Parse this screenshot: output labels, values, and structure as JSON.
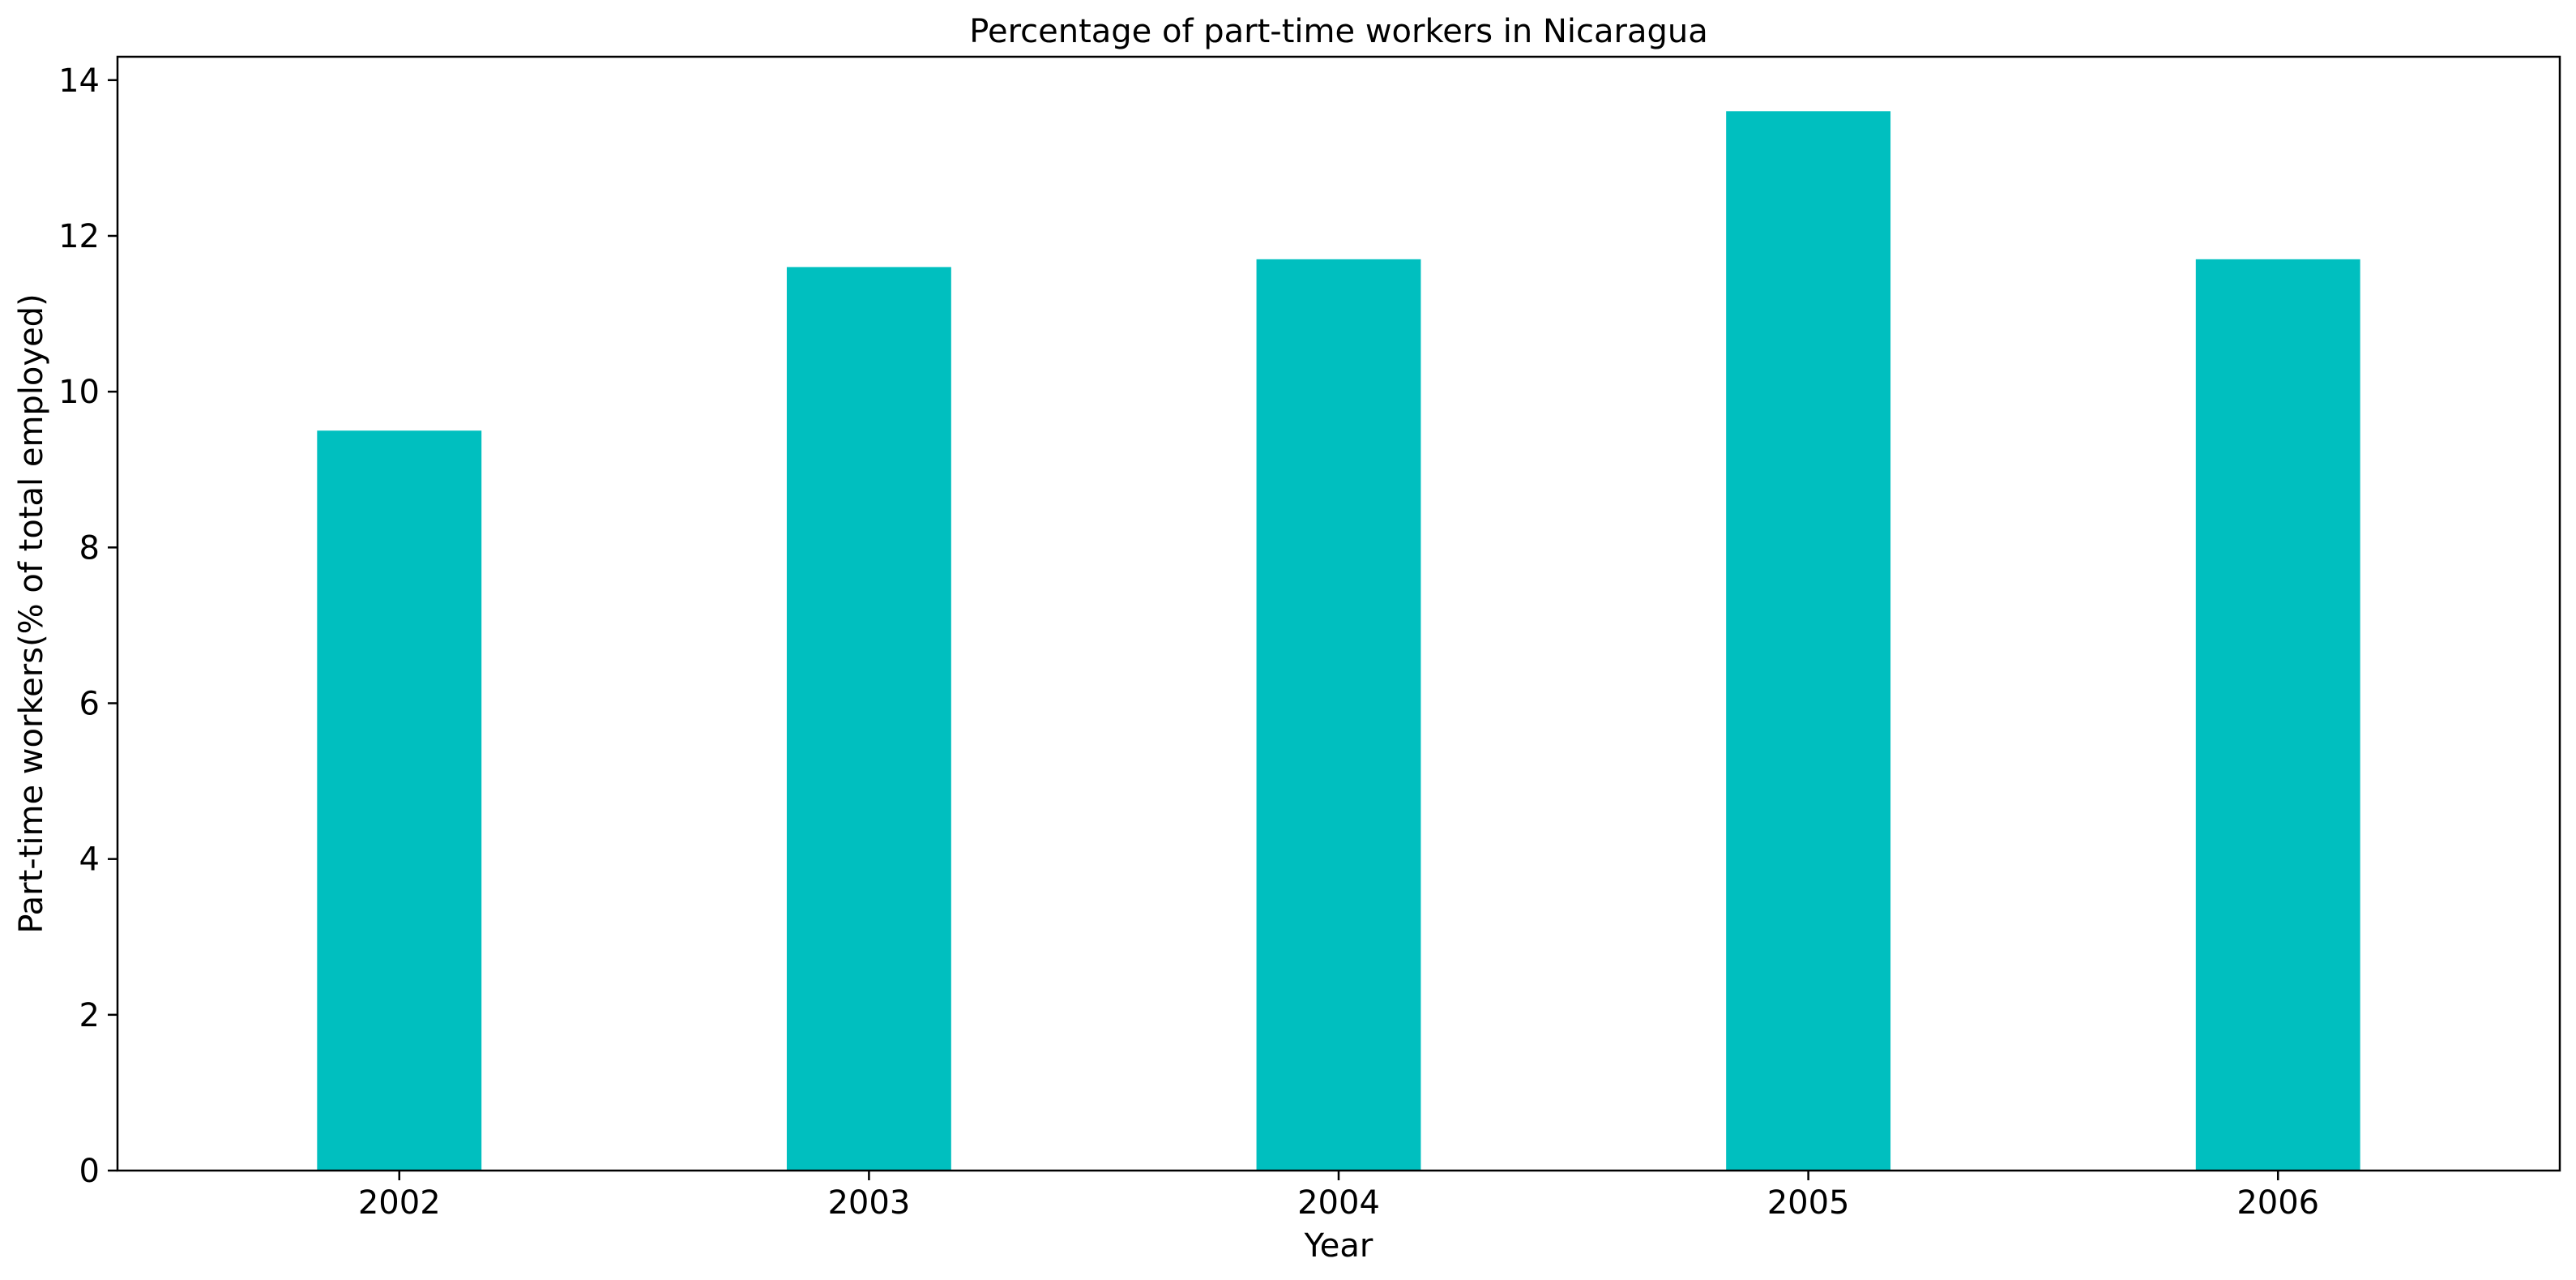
{
  "chart_data": {
    "type": "bar",
    "title": "Percentage of part-time workers in Nicaragua",
    "xlabel": "Year",
    "ylabel": "Part-time workers(% of total employed)",
    "categories": [
      "2002",
      "2003",
      "2004",
      "2005",
      "2006"
    ],
    "values": [
      9.5,
      11.6,
      11.7,
      13.6,
      11.7
    ],
    "ylim": [
      0,
      14.3
    ],
    "yticks": [
      0,
      2,
      4,
      6,
      8,
      10,
      12,
      14
    ],
    "bar_color": "#00bfbf",
    "grid": false,
    "legend": "none"
  }
}
